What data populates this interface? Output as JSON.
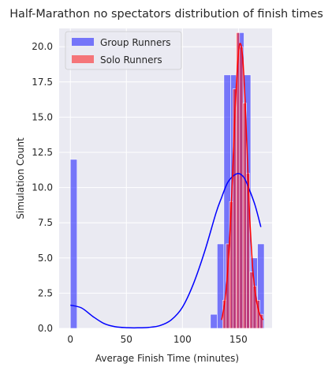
{
  "chart_data": {
    "type": "bar",
    "title": "Half-Marathon no spectators distribution of finish times",
    "xlabel": "Average Finish Time (minutes)",
    "ylabel": "Simulation Count",
    "xlim": [
      -10,
      180
    ],
    "ylim": [
      0,
      21.3
    ],
    "xticks": [
      0,
      50,
      100,
      150
    ],
    "yticks": [
      0.0,
      2.5,
      5.0,
      7.5,
      10.0,
      12.5,
      15.0,
      17.5,
      20.0
    ],
    "ytick_labels": [
      "0.0",
      "2.5",
      "5.0",
      "7.5",
      "10.0",
      "12.5",
      "15.0",
      "17.5",
      "20.0"
    ],
    "grid": true,
    "background_color": "#eaeaf2",
    "legend_position": "top-left",
    "series": [
      {
        "name": "Group Runners",
        "color": "#0000ff",
        "bins": [
          {
            "x0": 0,
            "x1": 6,
            "count": 12
          },
          {
            "x0": 125,
            "x1": 131,
            "count": 1
          },
          {
            "x0": 131,
            "x1": 137,
            "count": 6
          },
          {
            "x0": 137,
            "x1": 143,
            "count": 18
          },
          {
            "x0": 143,
            "x1": 149,
            "count": 18
          },
          {
            "x0": 149,
            "x1": 155,
            "count": 21
          },
          {
            "x0": 155,
            "x1": 161,
            "count": 18
          },
          {
            "x0": 161,
            "x1": 167,
            "count": 5
          },
          {
            "x0": 167,
            "x1": 173,
            "count": 6
          }
        ],
        "kde": {
          "x": [
            0,
            10,
            20,
            30,
            40,
            50,
            60,
            70,
            80,
            90,
            100,
            110,
            120,
            130,
            135,
            140,
            145,
            150,
            155,
            160,
            165,
            170
          ],
          "y": [
            1.65,
            1.45,
            0.85,
            0.35,
            0.12,
            0.05,
            0.04,
            0.07,
            0.2,
            0.6,
            1.5,
            3.2,
            5.5,
            8.2,
            9.3,
            10.3,
            10.8,
            11.0,
            10.7,
            9.8,
            8.7,
            7.2
          ]
        }
      },
      {
        "name": "Solo Runners",
        "color": "#ff0000",
        "bins": [
          {
            "x0": 136,
            "x1": 139,
            "count": 2
          },
          {
            "x0": 139,
            "x1": 142,
            "count": 6
          },
          {
            "x0": 142,
            "x1": 145,
            "count": 9
          },
          {
            "x0": 145,
            "x1": 148,
            "count": 17
          },
          {
            "x0": 148,
            "x1": 151,
            "count": 21
          },
          {
            "x0": 151,
            "x1": 154,
            "count": 20
          },
          {
            "x0": 154,
            "x1": 157,
            "count": 16
          },
          {
            "x0": 157,
            "x1": 160,
            "count": 11
          },
          {
            "x0": 160,
            "x1": 163,
            "count": 4
          },
          {
            "x0": 163,
            "x1": 166,
            "count": 3
          },
          {
            "x0": 166,
            "x1": 169,
            "count": 2
          },
          {
            "x0": 169,
            "x1": 172,
            "count": 1
          }
        ],
        "kde": {
          "x": [
            135,
            138,
            141,
            144,
            147,
            150,
            152,
            154,
            156,
            158,
            160,
            163,
            166,
            169,
            172
          ],
          "y": [
            0.6,
            2.0,
            4.8,
            9.5,
            15.5,
            19.5,
            20.2,
            19.0,
            16.0,
            12.0,
            8.0,
            4.0,
            2.0,
            1.0,
            0.6
          ]
        }
      }
    ]
  }
}
